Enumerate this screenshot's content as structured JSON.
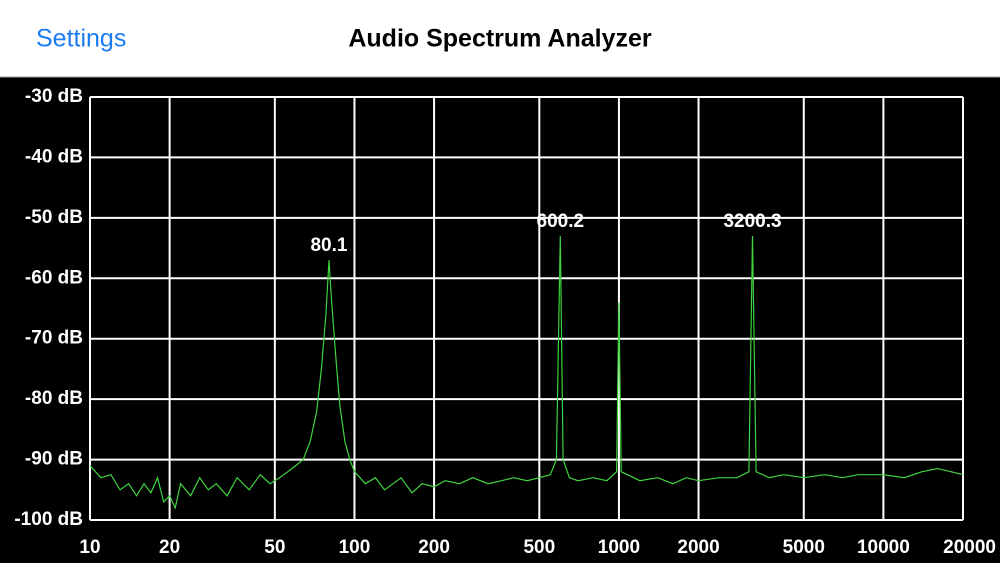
{
  "header": {
    "back": "Settings",
    "title": "Audio Spectrum Analyzer"
  },
  "chart_data": {
    "type": "line",
    "xscale": "log",
    "grid": true,
    "grid_color": "#ffffff",
    "xlim": [
      10,
      20000
    ],
    "ylim": [
      -100,
      -30
    ],
    "xticks": [
      10,
      20,
      50,
      100,
      200,
      500,
      1000,
      2000,
      5000,
      10000,
      20000
    ],
    "yticks": [
      {
        "value": -30,
        "label": "-30 dB"
      },
      {
        "value": -40,
        "label": "-40 dB"
      },
      {
        "value": -50,
        "label": "-50 dB"
      },
      {
        "value": -60,
        "label": "-60 dB"
      },
      {
        "value": -70,
        "label": "-70 dB"
      },
      {
        "value": -80,
        "label": "-80 dB"
      },
      {
        "value": -90,
        "label": "-90 dB"
      },
      {
        "value": -100,
        "label": "-100 dB"
      }
    ],
    "x": [
      10,
      11,
      12,
      13,
      14,
      15,
      16,
      17,
      18,
      19,
      20,
      21,
      22,
      24,
      26,
      28,
      30,
      33,
      36,
      40,
      44,
      48,
      52,
      56,
      60,
      64,
      68,
      72,
      75,
      78,
      80.1,
      82,
      85,
      88,
      92,
      96,
      100,
      110,
      120,
      130,
      140,
      150,
      165,
      180,
      200,
      220,
      250,
      280,
      320,
      360,
      400,
      450,
      500,
      550,
      580,
      600.2,
      615,
      650,
      700,
      800,
      900,
      980,
      1000,
      1020,
      1200,
      1400,
      1600,
      1800,
      2000,
      2400,
      2800,
      3100,
      3200.3,
      3300,
      3700,
      4200,
      5000,
      6000,
      7000,
      8000,
      10000,
      12000,
      14000,
      16000,
      18000,
      20000
    ],
    "series": [
      {
        "color": "#3fd33f",
        "values": [
          -91,
          -93,
          -92.5,
          -95,
          -94,
          -96,
          -94,
          -95.5,
          -93,
          -97,
          -96,
          -98,
          -94,
          -96,
          -93,
          -95,
          -94,
          -96,
          -93,
          -95,
          -92.5,
          -94,
          -93,
          -92,
          -91,
          -90,
          -87,
          -82,
          -75,
          -66,
          -57,
          -64,
          -73,
          -81,
          -87,
          -90,
          -92,
          -94,
          -93,
          -95,
          -94,
          -93,
          -95.5,
          -94,
          -94.5,
          -93.5,
          -94,
          -93,
          -94,
          -93.5,
          -93,
          -93.5,
          -93,
          -92.5,
          -90,
          -53,
          -90,
          -93,
          -93.5,
          -93,
          -93.5,
          -92,
          -64,
          -92,
          -93.5,
          -93,
          -94,
          -93,
          -93.5,
          -93,
          -93,
          -92,
          -53,
          -92,
          -93,
          -92.5,
          -93,
          -92.5,
          -93,
          -92.5,
          -92.5,
          -93,
          -92,
          -91.5,
          -92,
          -92.5
        ]
      }
    ],
    "peaks": [
      {
        "freq": 80.1,
        "level": -57
      },
      {
        "freq": 600.2,
        "level": -53
      },
      {
        "freq": 3200.3,
        "level": -53
      }
    ]
  }
}
